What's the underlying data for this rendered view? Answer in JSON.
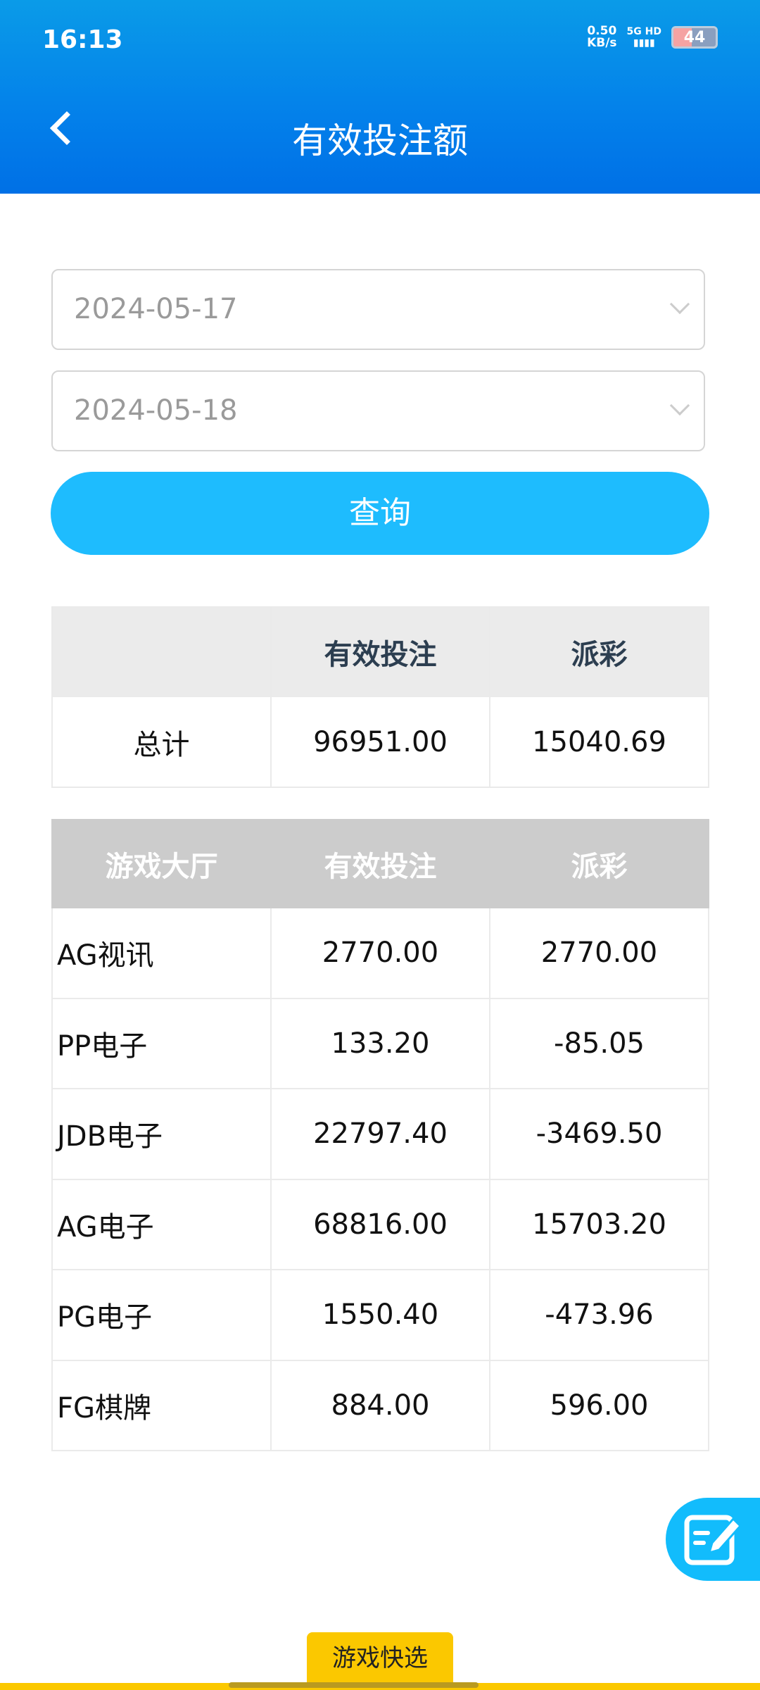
{
  "status_bar": {
    "time": "16:13",
    "net_speed": "0.50",
    "net_unit": "KB/s",
    "network": "5G HD",
    "battery": "44",
    "battery_level": 44
  },
  "header": {
    "title": "有效投注额"
  },
  "filters": {
    "start_date": "2024-05-17",
    "end_date": "2024-05-18",
    "query_label": "查询"
  },
  "summary": {
    "headers": [
      "",
      "有效投注",
      "派彩"
    ],
    "row": {
      "label": "总计",
      "bet": "96951.00",
      "payout": "15040.69"
    }
  },
  "detail": {
    "headers": [
      "游戏大厅",
      "有效投注",
      "派彩"
    ],
    "rows": [
      {
        "name": "AG视讯",
        "bet": "2770.00",
        "payout": "2770.00"
      },
      {
        "name": "PP电子",
        "bet": "133.20",
        "payout": "-85.05"
      },
      {
        "name": "JDB电子",
        "bet": "22797.40",
        "payout": "-3469.50"
      },
      {
        "name": "AG电子",
        "bet": "68816.00",
        "payout": "15703.20"
      },
      {
        "name": "PG电子",
        "bet": "1550.40",
        "payout": "-473.96"
      },
      {
        "name": "FG棋牌",
        "bet": "884.00",
        "payout": "596.00"
      }
    ]
  },
  "fab": {
    "icon": "edit-icon"
  },
  "bottom_tab": {
    "label": "游戏快选"
  },
  "colors": {
    "header": "#0380ea",
    "accent": "#1ebcfe",
    "tab": "#fbc800"
  }
}
